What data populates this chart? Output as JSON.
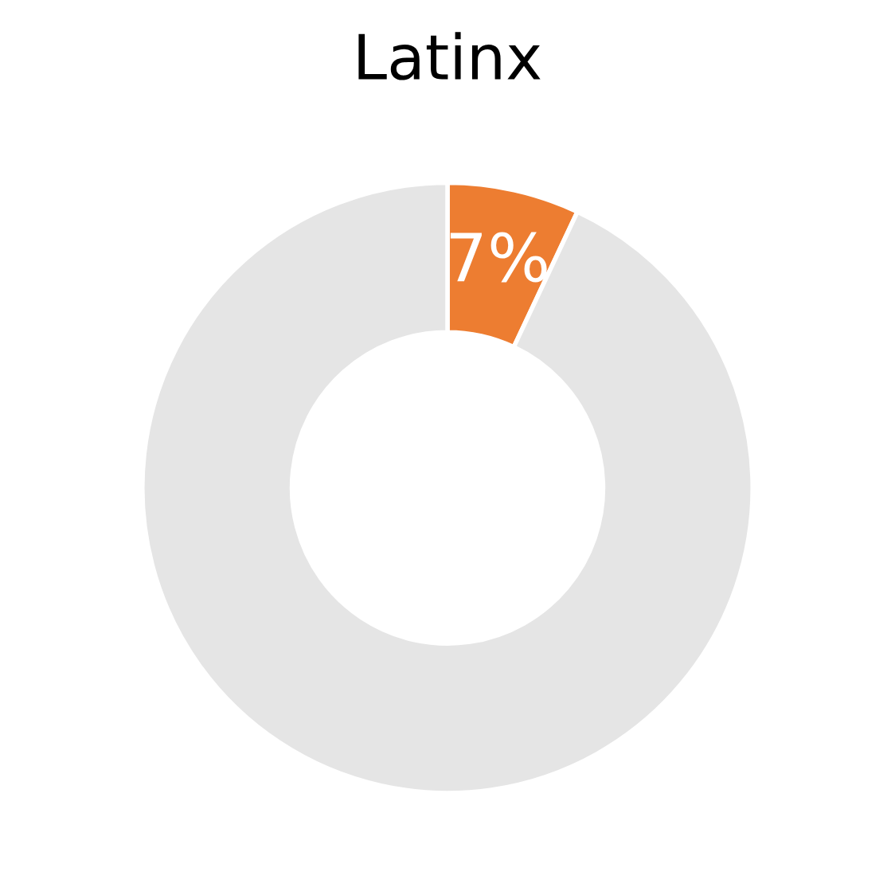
{
  "chart_data": {
    "type": "donut",
    "title": "Latinx",
    "categories": [
      null,
      null
    ],
    "values": [
      7,
      93
    ],
    "colors": [
      "#ed7d31",
      "#e5e5e5"
    ],
    "value_labels": [
      "7%",
      null
    ]
  }
}
